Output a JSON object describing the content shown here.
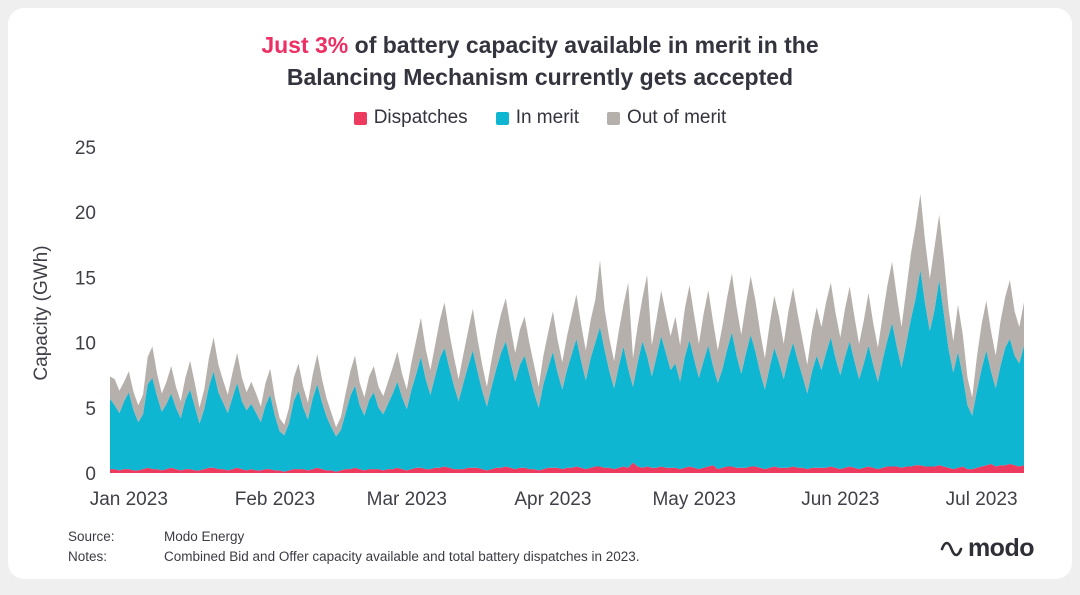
{
  "title": {
    "highlight": "Just 3%",
    "rest_line1": " of battery capacity available in merit in the",
    "line2": "Balancing Mechanism currently gets accepted"
  },
  "colors": {
    "accent": "#ed2f63",
    "dispatches": "#ed3a5f",
    "in_merit": "#0fb6d2",
    "out_of_merit": "#b5b0ac",
    "text_dark": "#34343f",
    "card_bg": "#ffffff",
    "page_bg": "#efefef"
  },
  "legend": [
    {
      "label": "Dispatches",
      "color": "#ed3a5f"
    },
    {
      "label": "In merit",
      "color": "#0fb6d2"
    },
    {
      "label": "Out of merit",
      "color": "#b5b0ac"
    }
  ],
  "footer": {
    "source_label": "Source:",
    "source_value": "Modo Energy",
    "notes_label": "Notes:",
    "notes_value": "Combined Bid and Offer capacity available and total battery dispatches in 2023."
  },
  "logo": {
    "text": "modo"
  },
  "chart_data": {
    "type": "area",
    "stacked": true,
    "title": "Just 3% of battery capacity available in merit in the Balancing Mechanism currently gets accepted",
    "xlabel": "",
    "ylabel": "Capacity (GWh)",
    "ylim": [
      0,
      25
    ],
    "yticks": [
      0,
      5,
      10,
      15,
      20,
      25
    ],
    "grid": false,
    "legend_position": "top",
    "x_unit": "daily values, Jan 1 2023 to Jul 14 2023",
    "xtick_labels": [
      "Jan 2023",
      "Feb 2023",
      "Mar 2023",
      "Apr 2023",
      "May 2023",
      "Jun 2023",
      "Jul 2023"
    ],
    "xtick_day_index": [
      0,
      31,
      59,
      90,
      120,
      151,
      181
    ],
    "series": [
      {
        "name": "Dispatches",
        "color": "#ed3a5f",
        "values": [
          0.3,
          0.3,
          0.2,
          0.3,
          0.3,
          0.2,
          0.2,
          0.3,
          0.4,
          0.3,
          0.3,
          0.2,
          0.3,
          0.4,
          0.3,
          0.2,
          0.3,
          0.3,
          0.2,
          0.2,
          0.3,
          0.4,
          0.4,
          0.3,
          0.3,
          0.2,
          0.3,
          0.4,
          0.3,
          0.2,
          0.3,
          0.2,
          0.2,
          0.3,
          0.3,
          0.2,
          0.2,
          0.1,
          0.2,
          0.3,
          0.3,
          0.3,
          0.2,
          0.3,
          0.4,
          0.3,
          0.2,
          0.2,
          0.1,
          0.2,
          0.3,
          0.3,
          0.4,
          0.3,
          0.2,
          0.3,
          0.3,
          0.3,
          0.2,
          0.3,
          0.3,
          0.4,
          0.3,
          0.2,
          0.3,
          0.4,
          0.4,
          0.3,
          0.3,
          0.4,
          0.4,
          0.5,
          0.4,
          0.3,
          0.3,
          0.3,
          0.4,
          0.4,
          0.4,
          0.3,
          0.2,
          0.3,
          0.4,
          0.4,
          0.5,
          0.4,
          0.3,
          0.4,
          0.4,
          0.3,
          0.3,
          0.2,
          0.3,
          0.4,
          0.4,
          0.4,
          0.3,
          0.4,
          0.4,
          0.5,
          0.4,
          0.3,
          0.4,
          0.5,
          0.5,
          0.4,
          0.4,
          0.3,
          0.4,
          0.5,
          0.4,
          0.8,
          0.5,
          0.4,
          0.5,
          0.4,
          0.4,
          0.5,
          0.4,
          0.4,
          0.4,
          0.3,
          0.4,
          0.5,
          0.4,
          0.3,
          0.4,
          0.5,
          0.6,
          0.3,
          0.4,
          0.5,
          0.5,
          0.4,
          0.4,
          0.4,
          0.5,
          0.5,
          0.4,
          0.3,
          0.4,
          0.5,
          0.4,
          0.4,
          0.4,
          0.5,
          0.4,
          0.4,
          0.3,
          0.4,
          0.4,
          0.4,
          0.4,
          0.5,
          0.4,
          0.3,
          0.4,
          0.5,
          0.4,
          0.3,
          0.4,
          0.5,
          0.4,
          0.3,
          0.4,
          0.5,
          0.5,
          0.5,
          0.4,
          0.5,
          0.5,
          0.6,
          0.6,
          0.5,
          0.5,
          0.5,
          0.6,
          0.5,
          0.4,
          0.3,
          0.4,
          0.5,
          0.3,
          0.3,
          0.4,
          0.5,
          0.6,
          0.7,
          0.5,
          0.6,
          0.6,
          0.7,
          0.6,
          0.5,
          0.6
        ]
      },
      {
        "name": "In merit",
        "color": "#0fb6d2",
        "values": [
          5.4,
          4.9,
          4.4,
          5.2,
          5.9,
          4.6,
          3.7,
          4.2,
          6.4,
          7.0,
          5.6,
          4.5,
          5.0,
          5.7,
          4.7,
          4.0,
          5.3,
          6.1,
          4.9,
          3.6,
          4.6,
          6.2,
          7.4,
          5.9,
          5.1,
          4.4,
          5.5,
          6.5,
          5.2,
          4.6,
          5.0,
          4.4,
          3.7,
          4.9,
          5.7,
          4.2,
          3.0,
          2.8,
          3.6,
          5.2,
          6.0,
          4.7,
          3.9,
          5.4,
          6.4,
          5.1,
          4.1,
          3.3,
          2.7,
          3.1,
          4.3,
          5.6,
          6.3,
          4.9,
          4.2,
          5.3,
          5.9,
          4.7,
          4.3,
          5.0,
          5.8,
          6.6,
          5.5,
          4.7,
          6.1,
          7.2,
          8.5,
          6.9,
          5.7,
          7.0,
          8.4,
          9.1,
          7.7,
          6.4,
          5.2,
          6.6,
          7.8,
          9.0,
          7.4,
          6.0,
          4.9,
          6.3,
          7.6,
          8.8,
          9.6,
          8.1,
          6.7,
          7.9,
          8.6,
          7.3,
          5.9,
          4.8,
          6.5,
          7.7,
          8.9,
          7.3,
          6.1,
          7.5,
          8.7,
          9.8,
          8.2,
          6.8,
          8.4,
          9.5,
          10.7,
          9.0,
          7.4,
          6.2,
          7.8,
          9.2,
          7.6,
          5.8,
          8.0,
          9.7,
          8.5,
          7.0,
          8.5,
          10.0,
          8.8,
          7.5,
          8.0,
          6.7,
          8.5,
          9.7,
          8.3,
          7.0,
          8.2,
          9.3,
          7.6,
          6.6,
          7.6,
          9.0,
          10.3,
          8.6,
          7.2,
          8.8,
          10.1,
          8.8,
          7.3,
          6.1,
          7.7,
          9.1,
          8.1,
          6.8,
          8.4,
          9.5,
          8.2,
          7.0,
          5.8,
          7.4,
          8.6,
          7.5,
          8.8,
          9.9,
          8.4,
          7.2,
          8.5,
          9.6,
          8.2,
          6.9,
          8.0,
          9.3,
          7.9,
          6.7,
          8.3,
          9.7,
          11.0,
          9.2,
          7.7,
          9.4,
          11.3,
          12.8,
          15.0,
          12.5,
          10.4,
          12.0,
          14.2,
          11.7,
          9.1,
          7.4,
          8.9,
          6.9,
          4.9,
          4.1,
          5.9,
          7.5,
          8.8,
          7.1,
          6.0,
          7.6,
          9.0,
          9.6,
          8.4,
          7.9,
          9.2
        ]
      },
      {
        "name": "Out of merit",
        "color": "#b5b0ac",
        "values": [
          1.7,
          2.0,
          1.7,
          1.5,
          1.6,
          1.4,
          1.3,
          1.5,
          2.1,
          2.4,
          1.7,
          1.4,
          1.7,
          2.1,
          1.6,
          1.3,
          1.7,
          2.2,
          1.8,
          1.2,
          1.5,
          2.2,
          2.6,
          2.1,
          1.7,
          1.4,
          1.9,
          2.3,
          1.8,
          1.4,
          1.7,
          1.5,
          1.2,
          1.7,
          2.0,
          1.4,
          1.0,
          0.8,
          1.2,
          1.8,
          2.1,
          1.6,
          1.3,
          1.8,
          2.3,
          1.8,
          1.4,
          1.1,
          0.7,
          1.0,
          1.5,
          1.9,
          2.3,
          1.7,
          1.4,
          1.8,
          2.0,
          1.6,
          1.4,
          1.7,
          2.0,
          2.3,
          1.8,
          1.5,
          2.1,
          2.6,
          3.0,
          2.3,
          1.9,
          2.4,
          2.9,
          3.5,
          2.7,
          2.2,
          1.7,
          2.2,
          2.7,
          3.2,
          2.5,
          2.0,
          1.5,
          2.1,
          2.6,
          3.0,
          3.3,
          2.7,
          2.2,
          2.7,
          3.0,
          2.4,
          2.1,
          1.6,
          2.2,
          2.7,
          3.1,
          2.5,
          2.1,
          2.6,
          3.0,
          3.4,
          2.8,
          2.3,
          2.9,
          3.3,
          5.1,
          3.1,
          2.5,
          2.1,
          2.7,
          3.2,
          6.6,
          2.2,
          2.8,
          3.3,
          6.2,
          2.4,
          2.9,
          3.5,
          3.0,
          2.6,
          3.6,
          2.8,
          3.7,
          4.2,
          3.4,
          2.6,
          3.6,
          4.2,
          3.4,
          2.5,
          3.3,
          4.0,
          4.5,
          3.7,
          3.0,
          3.8,
          4.5,
          3.9,
          3.1,
          2.4,
          3.3,
          4.0,
          3.5,
          2.7,
          3.6,
          4.2,
          3.5,
          2.8,
          2.2,
          3.1,
          3.7,
          3.3,
          3.9,
          4.2,
          3.5,
          2.9,
          3.7,
          4.2,
          3.4,
          2.7,
          3.3,
          4.0,
          3.2,
          2.6,
          3.4,
          4.2,
          4.7,
          3.9,
          3.1,
          4.1,
          5.0,
          5.5,
          5.8,
          4.8,
          4.0,
          4.8,
          5.0,
          4.2,
          3.1,
          2.4,
          3.6,
          3.2,
          2.1,
          1.4,
          2.6,
          3.4,
          3.8,
          3.1,
          2.5,
          3.4,
          3.9,
          4.5,
          3.4,
          2.8,
          3.3
        ]
      }
    ]
  }
}
